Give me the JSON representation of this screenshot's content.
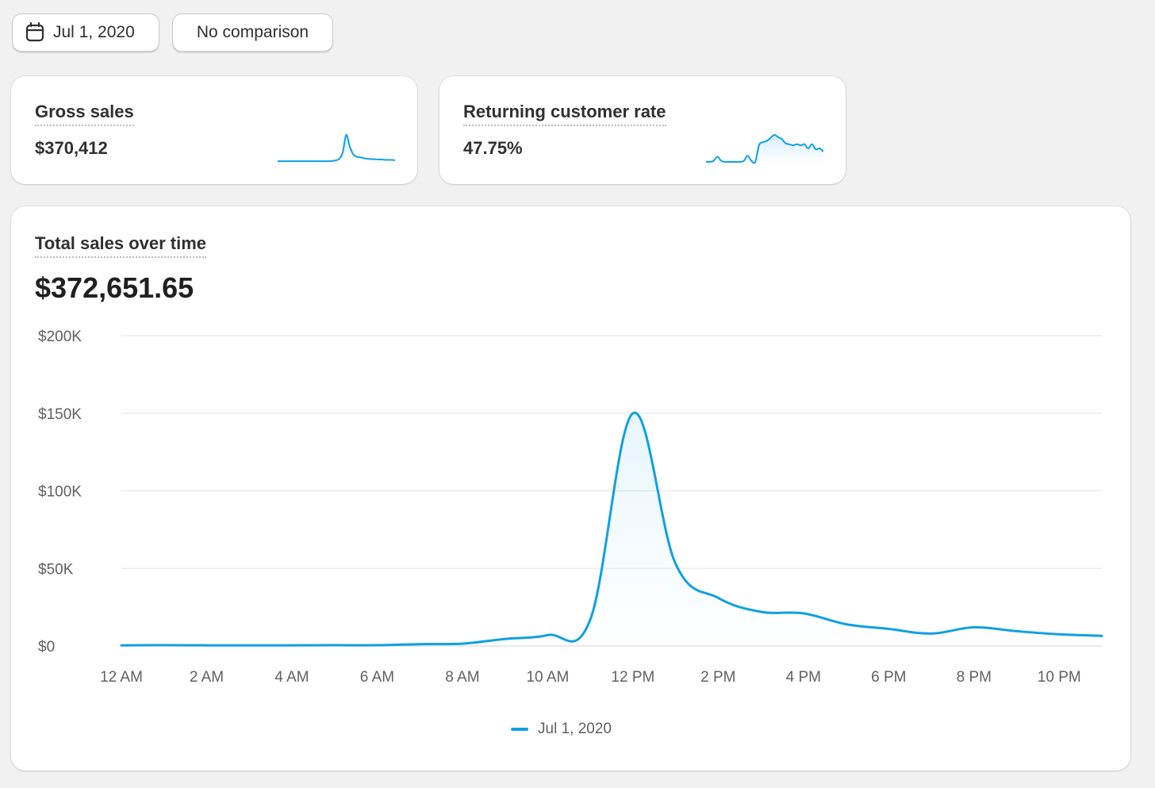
{
  "toolbar": {
    "date_label": "Jul 1, 2020",
    "date_icon": "calendar-icon",
    "comparison_label": "No comparison"
  },
  "metrics": [
    {
      "label": "Gross sales",
      "value": "$370,412",
      "trend": [
        0.2,
        0.2,
        0.2,
        0.2,
        0.2,
        0.2,
        0.2,
        0.2,
        0.2,
        0.2,
        0.2,
        0.2,
        0.2,
        0.2,
        0.2,
        0.2,
        0.2,
        0.3,
        0.5,
        1.0,
        3.0,
        8.0,
        5.0,
        2.5,
        1.6,
        1.4,
        1.2,
        1.0,
        0.9,
        0.8,
        0.8,
        0.7,
        0.7,
        0.6,
        0.6,
        0.6,
        0.5
      ]
    },
    {
      "label": "Returning customer rate",
      "value": "47.75%",
      "trend": [
        0,
        0,
        0.1,
        0.5,
        0.1,
        0,
        0,
        0,
        0,
        0,
        0.1,
        0.6,
        0.1,
        0,
        1.6,
        1.9,
        2.0,
        2.3,
        2.6,
        2.4,
        2.2,
        1.8,
        1.7,
        1.6,
        1.7,
        1.6,
        1.7,
        1.3,
        1.7,
        1.2,
        1.3,
        1.0
      ]
    }
  ],
  "chart": {
    "title": "Total sales over time",
    "total": "$372,651.65",
    "accent": "#0fa0e3"
  },
  "chart_data": {
    "type": "line",
    "title": "Total sales over time",
    "xlabel": "",
    "ylabel": "",
    "x": [
      "12 AM",
      "1 AM",
      "2 AM",
      "3 AM",
      "4 AM",
      "5 AM",
      "6 AM",
      "7 AM",
      "8 AM",
      "9 AM",
      "10 AM",
      "11 AM",
      "12 PM",
      "1 PM",
      "2 PM",
      "3 PM",
      "4 PM",
      "5 PM",
      "6 PM",
      "7 PM",
      "8 PM",
      "9 PM",
      "10 PM",
      "11 PM"
    ],
    "xticks": [
      "12 AM",
      "2 AM",
      "4 AM",
      "6 AM",
      "8 AM",
      "10 AM",
      "12 PM",
      "2 PM",
      "4 PM",
      "6 PM",
      "8 PM",
      "10 PM"
    ],
    "yticks": [
      "$0",
      "$50K",
      "$100K",
      "$150K",
      "$200K"
    ],
    "ylim": [
      0,
      200000
    ],
    "grid": true,
    "legend_position": "bottom",
    "series": [
      {
        "name": "Jul 1, 2020",
        "values": [
          400,
          500,
          400,
          400,
          400,
          500,
          500,
          1200,
          1500,
          4500,
          7000,
          17000,
          150000,
          53000,
          31000,
          22000,
          21000,
          14000,
          11000,
          8000,
          12000,
          9500,
          7500,
          6500
        ]
      }
    ]
  }
}
